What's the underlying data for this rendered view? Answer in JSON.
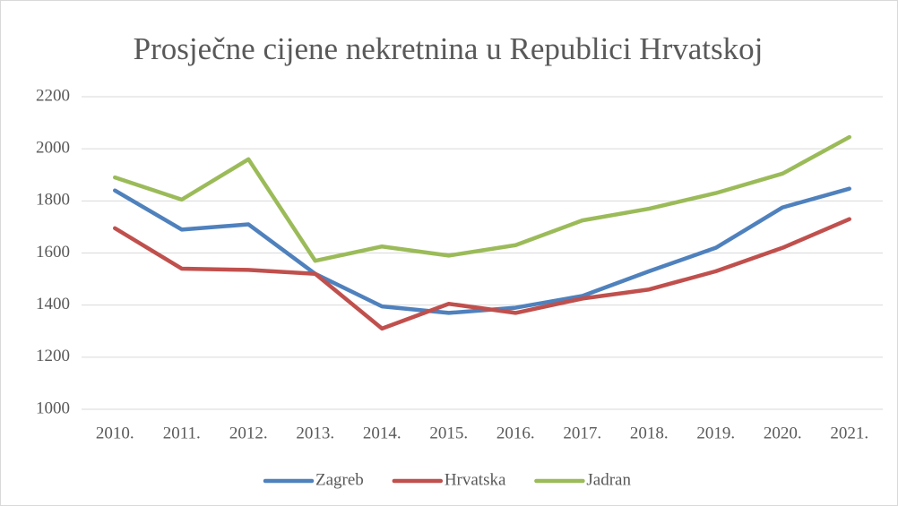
{
  "chart_data": {
    "type": "line",
    "title": "Prosječne cijene nekretnina u Republici Hrvatskoj",
    "categories": [
      "2010.",
      "2011.",
      "2012.",
      "2013.",
      "2014.",
      "2015.",
      "2016.",
      "2017.",
      "2018.",
      "2019.",
      "2020.",
      "2021."
    ],
    "series": [
      {
        "name": "Zagreb",
        "color": "#4f81bd",
        "values": [
          1840,
          1690,
          1710,
          1520,
          1395,
          1370,
          1390,
          1435,
          1530,
          1620,
          1775,
          1847
        ]
      },
      {
        "name": "Hrvatska",
        "color": "#c0504d",
        "values": [
          1695,
          1540,
          1535,
          1520,
          1310,
          1405,
          1370,
          1425,
          1460,
          1530,
          1620,
          1730
        ]
      },
      {
        "name": "Jadran",
        "color": "#9bbb59",
        "values": [
          1890,
          1805,
          1960,
          1570,
          1625,
          1590,
          1630,
          1725,
          1770,
          1830,
          1905,
          2045
        ]
      }
    ],
    "ylim": [
      1000,
      2200
    ],
    "yticks": [
      1000,
      1200,
      1400,
      1600,
      1800,
      2000,
      2200
    ],
    "grid": true,
    "legend": "bottom"
  }
}
